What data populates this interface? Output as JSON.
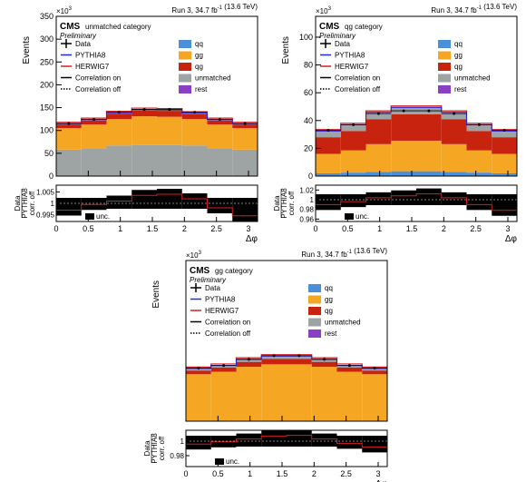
{
  "chart_data": [
    {
      "type": "bar",
      "panel": "unmatched",
      "category_label": "unmatched category",
      "stack_order": [
        "unmatched",
        "gg",
        "qg",
        "qq",
        "rest"
      ],
      "xbins": [
        0,
        0.3927,
        0.7854,
        1.1781,
        1.5708,
        1.9635,
        2.3562,
        2.7489,
        3.1416
      ],
      "series": [
        {
          "name": "gg",
          "values": [
            47,
            52,
            58,
            63,
            62,
            58,
            52,
            47
          ]
        },
        {
          "name": "qg",
          "values": [
            8,
            9,
            12,
            13,
            13,
            11,
            9,
            8
          ]
        },
        {
          "name": "unmatched",
          "values": [
            58,
            61,
            67,
            68,
            68,
            67,
            61,
            58
          ]
        },
        {
          "name": "qq",
          "values": [
            0.5,
            0.5,
            0.5,
            0.5,
            0.5,
            0.5,
            0.5,
            0.5
          ]
        },
        {
          "name": "rest",
          "values": [
            1.5,
            1.5,
            1.5,
            1.5,
            1.5,
            1.5,
            1.5,
            1.5
          ]
        }
      ],
      "data_points": [
        115,
        124,
        140,
        146,
        146,
        140,
        124,
        115
      ],
      "ylim": [
        0,
        350
      ],
      "yticks": [
        "0",
        "50",
        "100",
        "150",
        "200",
        "250",
        "300",
        "350"
      ],
      "ratio_ylim": [
        0.992,
        1.008
      ],
      "ratio_ticks": [
        "0.99",
        "0.995",
        "1",
        "1.005"
      ],
      "ratio_values": [
        0.997,
        0.9995,
        1.001,
        1.0035,
        1.004,
        1.002,
        0.998,
        0.9945
      ]
    },
    {
      "type": "bar",
      "panel": "qg",
      "category_label": "qg category",
      "stack_order": [
        "qq",
        "gg",
        "qg",
        "unmatched",
        "rest"
      ],
      "xbins": [
        0,
        0.3927,
        0.7854,
        1.1781,
        1.5708,
        1.9635,
        2.3562,
        2.7489,
        3.1416
      ],
      "series": [
        {
          "name": "qq",
          "values": [
            2,
            2.5,
            3,
            3.5,
            3.5,
            3,
            2.5,
            2
          ]
        },
        {
          "name": "gg",
          "values": [
            14,
            16,
            20,
            22,
            22,
            20,
            16,
            14
          ]
        },
        {
          "name": "qg",
          "values": [
            12,
            14,
            18,
            19,
            19,
            18,
            14,
            12
          ]
        },
        {
          "name": "unmatched",
          "values": [
            4,
            4,
            4.5,
            4.5,
            4.5,
            4.5,
            4,
            4
          ]
        },
        {
          "name": "rest",
          "values": [
            0.5,
            0.5,
            0.5,
            0.5,
            0.5,
            0.5,
            0.5,
            0.5
          ]
        }
      ],
      "data_points": [
        33,
        37,
        45,
        47,
        47,
        45,
        37,
        33
      ],
      "ylim": [
        0,
        115
      ],
      "yticks": [
        "0",
        "20",
        "40",
        "60",
        "80",
        "100"
      ],
      "ratio_ylim": [
        0.955,
        1.03
      ],
      "ratio_ticks": [
        "0.96",
        "0.98",
        "1",
        "1.02"
      ],
      "ratio_values": [
        0.99,
        0.996,
        1.004,
        1.008,
        1.012,
        1.004,
        0.99,
        0.978
      ]
    },
    {
      "type": "bar",
      "panel": "gg",
      "category_label": "gg category",
      "stack_order": [
        "gg",
        "qg",
        "unmatched",
        "qq",
        "rest"
      ],
      "xbins": [
        0,
        0.3927,
        0.7854,
        1.1781,
        1.5708,
        1.9635,
        2.3562,
        2.7489,
        3.1416
      ],
      "series": [
        {
          "name": "gg",
          "values": [
            38,
            40,
            44,
            46,
            46,
            44,
            40,
            38
          ]
        },
        {
          "name": "qg",
          "values": [
            3,
            3.5,
            4,
            4.5,
            4.5,
            4,
            3.5,
            3
          ]
        },
        {
          "name": "unmatched",
          "values": [
            1,
            1,
            1.5,
            1.5,
            1.5,
            1.5,
            1,
            1
          ]
        },
        {
          "name": "qq",
          "values": [
            0.3,
            0.3,
            0.3,
            0.3,
            0.3,
            0.3,
            0.3,
            0.3
          ]
        },
        {
          "name": "rest",
          "values": [
            0.4,
            0.4,
            0.4,
            0.4,
            0.4,
            0.4,
            0.4,
            0.4
          ]
        }
      ],
      "data_points": [
        43,
        45,
        50,
        53,
        53,
        50,
        45,
        43
      ],
      "ylim": [
        0,
        130
      ],
      "yticks": [],
      "ratio_ylim": [
        0.965,
        1.015
      ],
      "ratio_ticks": [
        "0.98",
        "1"
      ],
      "ratio_values": [
        0.996,
        0.999,
        1.003,
        1.007,
        1.008,
        1.003,
        0.997,
        0.992
      ]
    }
  ],
  "common": {
    "cms": "CMS",
    "preliminary": "Preliminary",
    "lumi": "Run 3, 34.7 fb",
    "lumi_sup": "-1",
    "energy": " (13.6 TeV)",
    "ylabel": "Events",
    "yexp": "×10",
    "yexp_sup": "3",
    "xlabel": "Δφ",
    "xticks": [
      "0",
      "0.5",
      "1",
      "1.5",
      "2",
      "2.5",
      "3"
    ],
    "ratio_label_top": "Data",
    "ratio_label_bottom": "PYTHIA8",
    "ratio_label_side": "corr. off",
    "unc_label": "unc.",
    "legend": {
      "data": "Data",
      "pythia": "PYTHIA8",
      "herwig": "HERWIG7",
      "corr_on": "Correlation on",
      "corr_off": "Correlation off",
      "qq": "qq",
      "gg": "gg",
      "qg": "qg",
      "unmatched": "unmatched",
      "rest": "rest"
    }
  },
  "colors": {
    "qq": "#4a90d9",
    "gg": "#f5a623",
    "qg": "#c8230f",
    "unmatched": "#9ea3a3",
    "rest": "#8a3fc4",
    "pythia": "#1f2bd6",
    "herwig": "#d42020"
  }
}
